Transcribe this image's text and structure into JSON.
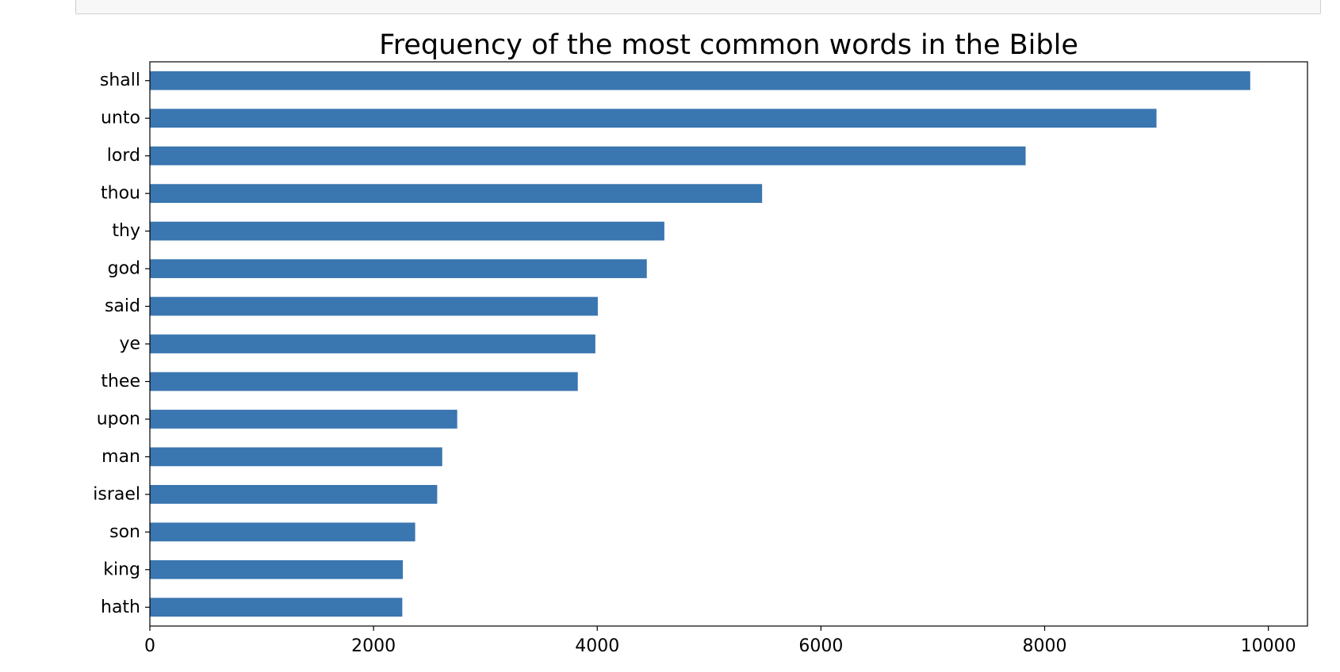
{
  "code_cell": {
    "visible_text": ""
  },
  "chart_data": {
    "type": "bar",
    "orientation": "horizontal",
    "title": "Frequency of the most common words in the Bible",
    "xlabel": "",
    "ylabel": "",
    "categories": [
      "shall",
      "unto",
      "lord",
      "thou",
      "thy",
      "god",
      "said",
      "ye",
      "thee",
      "upon",
      "man",
      "israel",
      "son",
      "king",
      "hath"
    ],
    "values": [
      9838,
      9000,
      7830,
      5474,
      4600,
      4443,
      4005,
      3983,
      3826,
      2748,
      2614,
      2569,
      2372,
      2262,
      2257
    ],
    "xlim": [
      0,
      10350
    ],
    "x_ticks": [
      "0",
      "2000",
      "4000",
      "6000",
      "8000",
      "10000"
    ],
    "x_tick_values": [
      0,
      2000,
      4000,
      6000,
      8000,
      10000
    ],
    "grid": false,
    "legend": "none",
    "bar_color": "#3a76b0"
  }
}
